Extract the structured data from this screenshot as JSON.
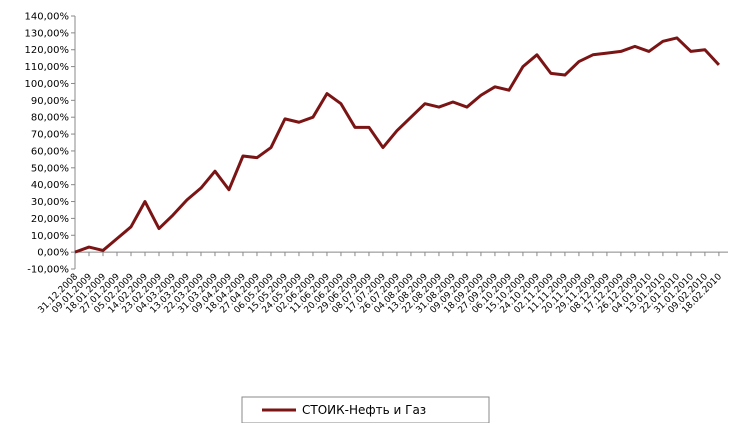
{
  "chart_data": {
    "type": "line",
    "categories": [
      "31.12.2008",
      "09.01.2009",
      "18.01.2009",
      "27.01.2009",
      "05.02.2009",
      "14.02.2009",
      "23.02.2009",
      "04.03.2009",
      "13.03.2009",
      "22.03.2009",
      "31.03.2009",
      "09.04.2009",
      "18.04.2009",
      "27.04.2009",
      "06.05.2009",
      "15.05.2009",
      "24.05.2009",
      "02.06.2009",
      "11.06.2009",
      "20.06.2009",
      "29.06.2009",
      "08.07.2009",
      "17.07.2009",
      "26.07.2009",
      "04.08.2009",
      "13.08.2009",
      "22.08.2009",
      "31.08.2009",
      "09.09.2009",
      "18.09.2009",
      "27.09.2009",
      "06.10.2009",
      "15.10.2009",
      "24.10.2009",
      "02.11.2009",
      "11.11.2009",
      "20.11.2009",
      "29.11.2009",
      "08.12.2009",
      "17.12.2009",
      "26.12.2009",
      "04.01.2010",
      "13.01.2010",
      "22.01.2010",
      "31.01.2010",
      "09.02.2010",
      "18.02.2010"
    ],
    "series": [
      {
        "name": "СТОИК-Нефть и Газ",
        "color": "#7b1515",
        "values": [
          0,
          3,
          1,
          8,
          15,
          30,
          14,
          22,
          31,
          38,
          48,
          37,
          57,
          56,
          62,
          79,
          77,
          80,
          94,
          88,
          74,
          74,
          62,
          72,
          80,
          88,
          86,
          89,
          86,
          93,
          98,
          96,
          110,
          117,
          106,
          105,
          113,
          117,
          118,
          119,
          122,
          119,
          125,
          127,
          119,
          120,
          111
        ]
      }
    ],
    "ylim": [
      -10,
      140
    ],
    "yticks": [
      {
        "value": -10,
        "label": "-10,00%"
      },
      {
        "value": 0,
        "label": "0,00%"
      },
      {
        "value": 10,
        "label": "10,00%"
      },
      {
        "value": 20,
        "label": "20,00%"
      },
      {
        "value": 30,
        "label": "30,00%"
      },
      {
        "value": 40,
        "label": "40,00%"
      },
      {
        "value": 50,
        "label": "50,00%"
      },
      {
        "value": 60,
        "label": "60,00%"
      },
      {
        "value": 70,
        "label": "70,00%"
      },
      {
        "value": 80,
        "label": "80,00%"
      },
      {
        "value": 90,
        "label": "90,00%"
      },
      {
        "value": 100,
        "label": "100,00%"
      },
      {
        "value": 110,
        "label": "110,00%"
      },
      {
        "value": 120,
        "label": "120,00%"
      },
      {
        "value": 130,
        "label": "130,00%"
      },
      {
        "value": 140,
        "label": "140,00%"
      }
    ],
    "legend": "bottom"
  }
}
